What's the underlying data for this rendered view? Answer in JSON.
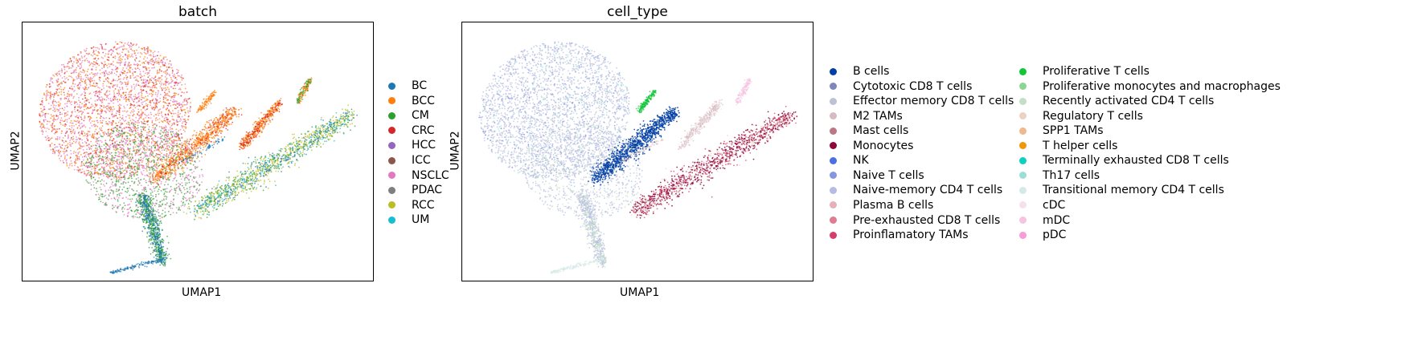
{
  "chart_data": [
    {
      "type": "scatter",
      "title": "batch",
      "xlabel": "UMAP1",
      "ylabel": "UMAP2",
      "grid": false,
      "legend_placement": "right",
      "series": [
        {
          "name": "BC",
          "color": "#1f77b4"
        },
        {
          "name": "BCC",
          "color": "#ff7f0e"
        },
        {
          "name": "CM",
          "color": "#2ca02c"
        },
        {
          "name": "CRC",
          "color": "#d62728"
        },
        {
          "name": "HCC",
          "color": "#9467bd"
        },
        {
          "name": "ICC",
          "color": "#8c564b"
        },
        {
          "name": "NSCLC",
          "color": "#e377c2"
        },
        {
          "name": "PDAC",
          "color": "#7f7f7f"
        },
        {
          "name": "RCC",
          "color": "#bcbd22"
        },
        {
          "name": "UM",
          "color": "#17becf"
        }
      ]
    },
    {
      "type": "scatter",
      "title": "cell_type",
      "xlabel": "UMAP1",
      "ylabel": "UMAP2",
      "grid": false,
      "legend_placement": "right",
      "series": [
        {
          "name": "B cells",
          "color": "#023fa5"
        },
        {
          "name": "Cytotoxic CD8 T cells",
          "color": "#7d87b9"
        },
        {
          "name": "Effector memory CD8 T cells",
          "color": "#bec1d4"
        },
        {
          "name": "M2 TAMs",
          "color": "#d6bcc0"
        },
        {
          "name": "Mast cells",
          "color": "#bb7784"
        },
        {
          "name": "Monocytes",
          "color": "#8e063b"
        },
        {
          "name": "NK",
          "color": "#4a6fe3"
        },
        {
          "name": "Naive T cells",
          "color": "#8595e1"
        },
        {
          "name": "Naive-memory CD4 T cells",
          "color": "#b5bbe3"
        },
        {
          "name": "Plasma B cells",
          "color": "#e6afb9"
        },
        {
          "name": "Pre-exhausted CD8 T cells",
          "color": "#e07b91"
        },
        {
          "name": "Proinflamatory TAMs",
          "color": "#d33f6a"
        },
        {
          "name": "Proliferative T cells",
          "color": "#11c638"
        },
        {
          "name": "Proliferative monocytes and macrophages",
          "color": "#8dd593"
        },
        {
          "name": "Recently activated CD4 T cells",
          "color": "#c6dec7"
        },
        {
          "name": "Regulatory T cells",
          "color": "#ead3c6"
        },
        {
          "name": "SPP1 TAMs",
          "color": "#f0b98d"
        },
        {
          "name": "T helper cells",
          "color": "#ef9708"
        },
        {
          "name": "Terminally exhausted CD8 T cells",
          "color": "#0fcfc0"
        },
        {
          "name": "Th17 cells",
          "color": "#9cded6"
        },
        {
          "name": "Transitional memory CD4 T cells",
          "color": "#d5eae7"
        },
        {
          "name": "cDC",
          "color": "#f3e1eb"
        },
        {
          "name": "mDC",
          "color": "#f6c4e1"
        },
        {
          "name": "pDC",
          "color": "#f79cd4"
        }
      ]
    }
  ]
}
